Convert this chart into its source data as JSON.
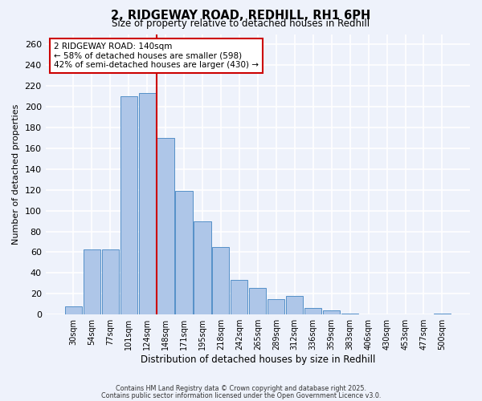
{
  "title_line1": "2, RIDGEWAY ROAD, REDHILL, RH1 6PH",
  "title_line2": "Size of property relative to detached houses in Redhill",
  "xlabel": "Distribution of detached houses by size in Redhill",
  "ylabel": "Number of detached properties",
  "bin_labels": [
    "30sqm",
    "54sqm",
    "77sqm",
    "101sqm",
    "124sqm",
    "148sqm",
    "171sqm",
    "195sqm",
    "218sqm",
    "242sqm",
    "265sqm",
    "289sqm",
    "312sqm",
    "336sqm",
    "359sqm",
    "383sqm",
    "406sqm",
    "430sqm",
    "453sqm",
    "477sqm",
    "500sqm"
  ],
  "bar_values": [
    8,
    63,
    63,
    210,
    213,
    170,
    119,
    90,
    65,
    33,
    26,
    15,
    18,
    6,
    4,
    1,
    0,
    0,
    0,
    0,
    1
  ],
  "bar_color": "#aec6e8",
  "bar_edge_color": "#5590c8",
  "background_color": "#eef2fb",
  "grid_color": "#ffffff",
  "vline_color": "#cc0000",
  "annotation_title": "2 RIDGEWAY ROAD: 140sqm",
  "annotation_line2": "← 58% of detached houses are smaller (598)",
  "annotation_line3": "42% of semi-detached houses are larger (430) →",
  "annotation_box_color": "#ffffff",
  "annotation_border_color": "#cc0000",
  "ylim": [
    0,
    270
  ],
  "yticks": [
    0,
    20,
    40,
    60,
    80,
    100,
    120,
    140,
    160,
    180,
    200,
    220,
    240,
    260
  ],
  "footnote1": "Contains HM Land Registry data © Crown copyright and database right 2025.",
  "footnote2": "Contains public sector information licensed under the Open Government Licence v3.0."
}
